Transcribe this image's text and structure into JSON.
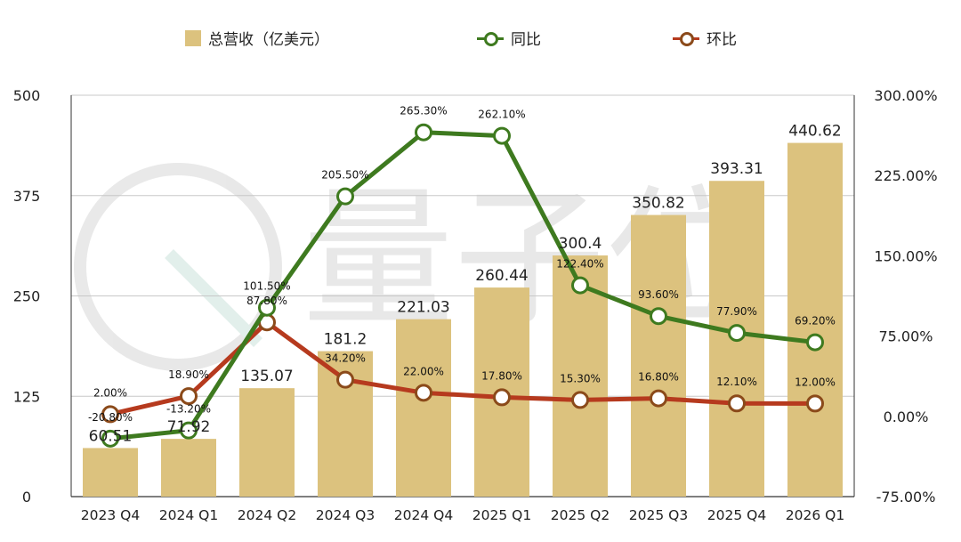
{
  "legend": {
    "revenue": "总营收（亿美元）",
    "yoy": "同比",
    "qoq": "环比"
  },
  "watermark": "量子位",
  "colors": {
    "bar": "#dcc27e",
    "yoy_line": "#3e7a1f",
    "qoq_line": "#b63a1e",
    "qoq_marker": "#8b4a1a",
    "grid": "#c8c8c8"
  },
  "chart_data": {
    "type": "bar",
    "categories": [
      "2023 Q4",
      "2024 Q1",
      "2024 Q2",
      "2024 Q3",
      "2024 Q4",
      "2025 Q1",
      "2025 Q2",
      "2025 Q3",
      "2025 Q4",
      "2026 Q1"
    ],
    "series": [
      {
        "name": "总营收（亿美元）",
        "type": "bar",
        "axis": "left",
        "values": [
          60.51,
          71.92,
          135.07,
          181.2,
          221.03,
          260.44,
          300.4,
          350.82,
          393.31,
          440.62
        ],
        "labels": [
          "60.51",
          "71.92",
          "135.07",
          "181.2",
          "221.03",
          "260.44",
          "300.4",
          "350.82",
          "393.31",
          "440.62"
        ]
      },
      {
        "name": "同比",
        "type": "line",
        "axis": "right",
        "values": [
          -20.8,
          -13.2,
          101.5,
          205.5,
          265.3,
          262.1,
          122.4,
          93.6,
          77.9,
          69.2
        ],
        "labels": [
          "-20.80%",
          "-13.20%",
          "101.50%",
          "205.50%",
          "265.30%",
          "262.10%",
          "122.40%",
          "93.60%",
          "77.90%",
          "69.20%"
        ]
      },
      {
        "name": "环比",
        "type": "line",
        "axis": "right",
        "values": [
          2.0,
          18.9,
          87.8,
          34.2,
          22.0,
          17.8,
          15.3,
          16.8,
          12.1,
          12.0
        ],
        "labels": [
          "2.00%",
          "18.90%",
          "87.80%",
          "34.20%",
          "22.00%",
          "17.80%",
          "15.30%",
          "16.80%",
          "12.10%",
          "12.00%"
        ]
      }
    ],
    "y_left": {
      "range": [
        0,
        500
      ],
      "ticks": [
        "0",
        "125",
        "250",
        "375",
        "500"
      ]
    },
    "y_right": {
      "range": [
        -75,
        300
      ],
      "ticks": [
        "-75.00%",
        "0.00%",
        "75.00%",
        "150.00%",
        "225.00%",
        "300.00%"
      ]
    },
    "grid": true,
    "legend_position": "top"
  }
}
